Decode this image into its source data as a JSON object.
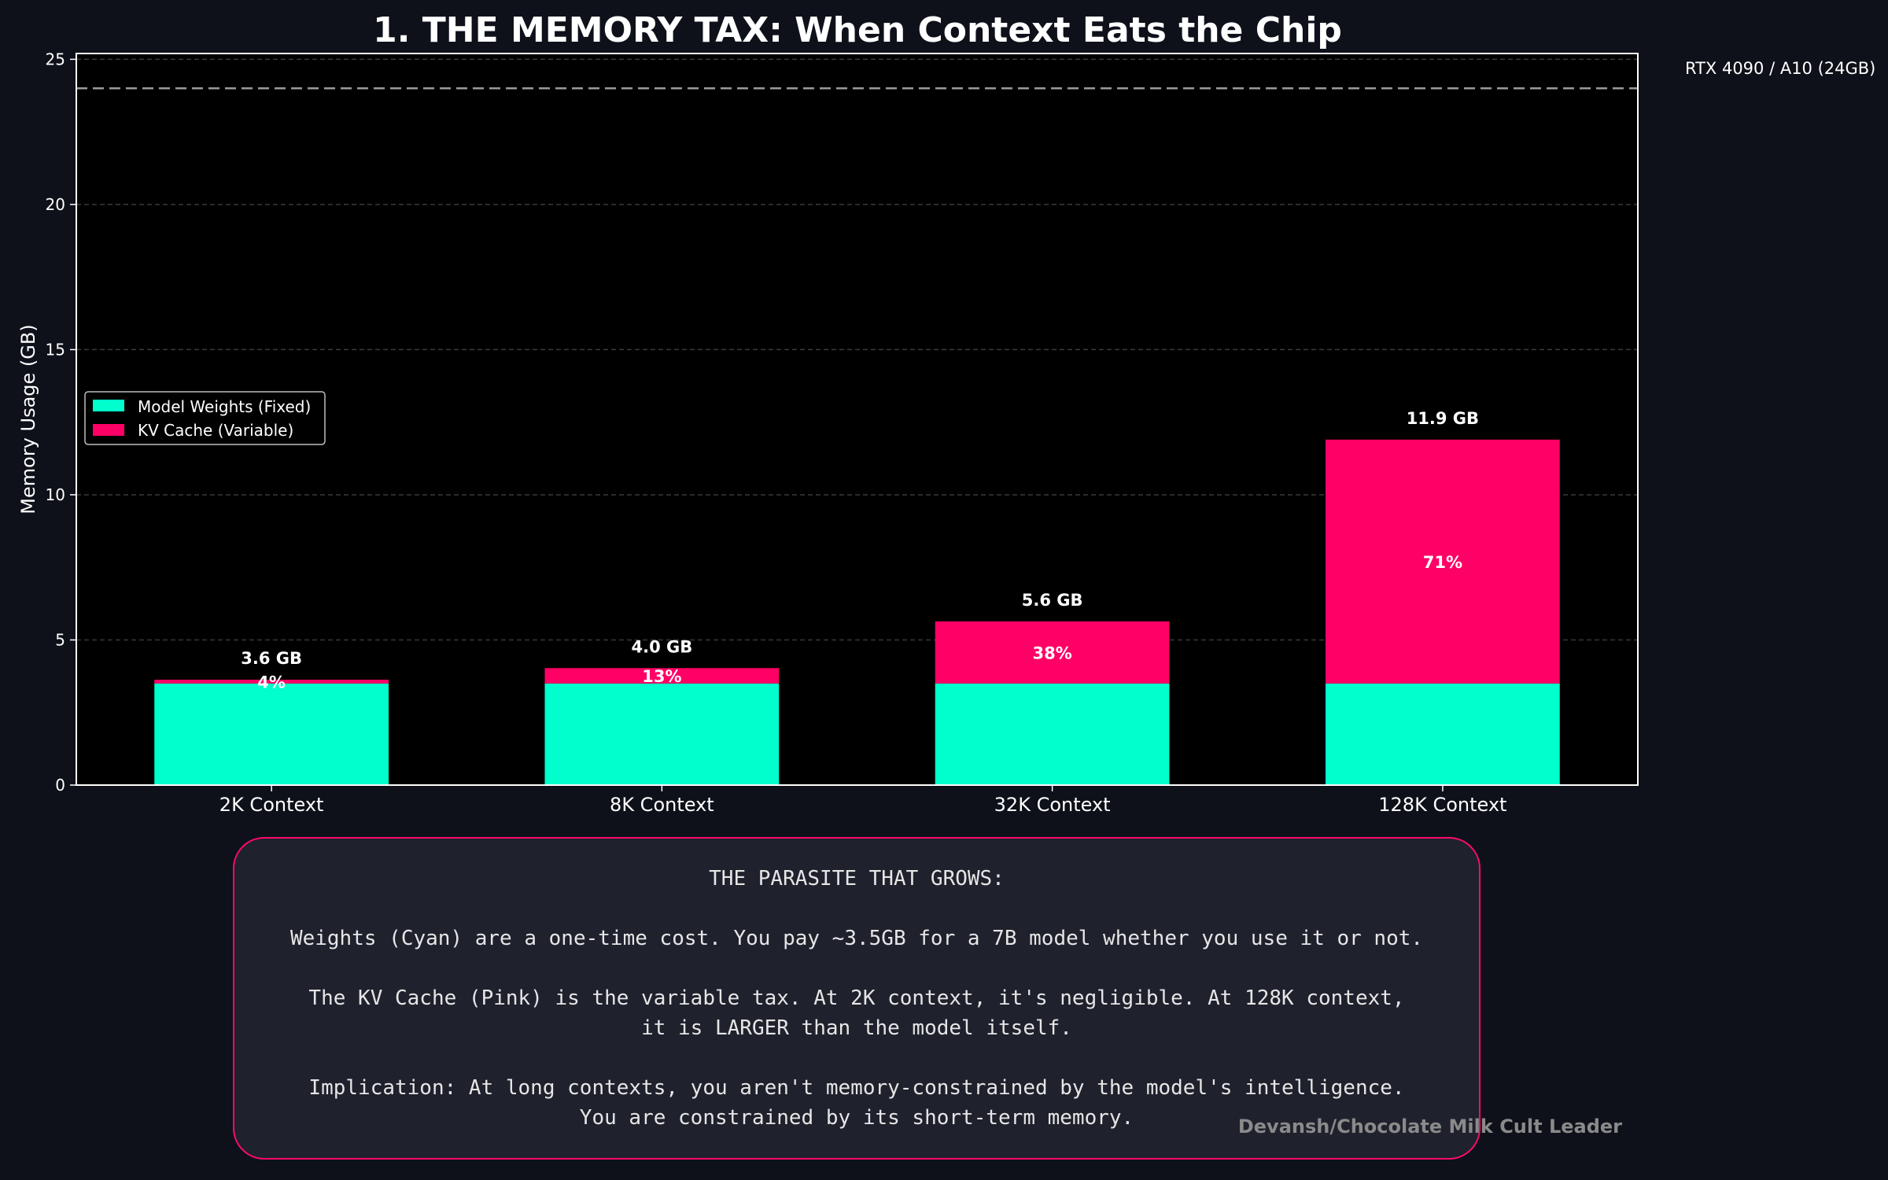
{
  "chart_data": {
    "type": "bar",
    "stacked": true,
    "title": "1. THE MEMORY TAX: When Context Eats the Chip",
    "ylabel": "Memory Usage (GB)",
    "xlabel": "",
    "ylim": [
      0,
      25.2
    ],
    "yticks": [
      0,
      5,
      10,
      15,
      20,
      25
    ],
    "grid": true,
    "legend_position": "center-left",
    "categories": [
      "2K Context",
      "8K Context",
      "32K Context",
      "128K Context"
    ],
    "series": [
      {
        "name": "Model Weights (Fixed)",
        "color": "#00ffcc",
        "values": [
          3.5,
          3.5,
          3.5,
          3.5
        ]
      },
      {
        "name": "KV Cache (Variable)",
        "color": "#ff0066",
        "values": [
          0.13,
          0.53,
          2.14,
          8.4
        ]
      }
    ],
    "total_labels": [
      "3.6 GB",
      "4.0 GB",
      "5.6 GB",
      "11.9 GB"
    ],
    "percent_labels": [
      "4%",
      "13%",
      "38%",
      "71%"
    ],
    "reference_line": {
      "value": 24,
      "label": "RTX 4090 / A10 (24GB)",
      "color": "#9a9a9a"
    }
  },
  "note": {
    "heading": "THE PARASITE THAT GROWS:",
    "p1": "Weights (Cyan) are a one-time cost. You pay ~3.5GB for a 7B model whether you use it or not.",
    "p2": "The KV Cache (Pink) is the variable tax. At 2K context, it's negligible. At 128K context,\nit is LARGER than the model itself.",
    "p3": "Implication: At long contexts, you aren't memory-constrained by the model's intelligence.\nYou are constrained by its short-term memory."
  },
  "watermark": "Devansh/Chocolate Milk Cult Leader"
}
